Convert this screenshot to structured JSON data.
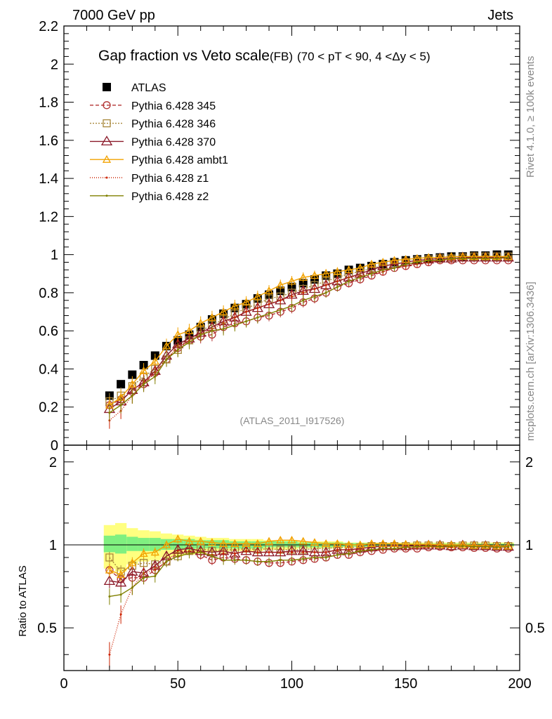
{
  "header": {
    "left": "7000 GeV pp",
    "right": "Jets"
  },
  "side_labels": {
    "rivet": "Rivet 4.1.0, ≥ 100k events",
    "mcplots": "mcplots.cern.ch [arXiv:1306.3436]"
  },
  "analysis_id": "(ATLAS_2011_I917526)",
  "colors": {
    "ATLAS": "#000000",
    "p345": "#b33333",
    "p346": "#a8873a",
    "p370": "#8b1a2a",
    "ambt1": "#f2a200",
    "z1": "#cc2200",
    "z2": "#808000",
    "band_green": "#80f080",
    "band_yellow": "#ffff80"
  },
  "chart_data": [
    {
      "type": "line",
      "title": "Gap fraction vs Veto scale",
      "title_suffix": "(FB)",
      "subtitle": "(70 < pT <  90, 4 <Δy < 5)",
      "xlabel": "",
      "ylabel": "",
      "xlim": [
        0,
        200
      ],
      "ylim": [
        0,
        2.2
      ],
      "yticks": [
        0,
        0.2,
        0.4,
        0.6,
        0.8,
        1,
        1.2,
        1.4,
        1.6,
        1.8,
        2,
        2.2
      ],
      "ytick_labels": [
        "0",
        "0.2",
        "0.4",
        "0.6",
        "0.8",
        "1",
        "1.2",
        "1.4",
        "1.6",
        "1.8",
        "2",
        "2.2"
      ],
      "x": [
        20,
        25,
        30,
        35,
        40,
        45,
        50,
        55,
        60,
        65,
        70,
        75,
        80,
        85,
        90,
        95,
        100,
        105,
        110,
        115,
        120,
        125,
        130,
        135,
        140,
        145,
        150,
        155,
        160,
        165,
        170,
        175,
        180,
        185,
        190,
        195
      ],
      "legend": [
        {
          "key": "ATLAS",
          "label": "ATLAS"
        },
        {
          "key": "p345",
          "label": "Pythia 6.428 345"
        },
        {
          "key": "p346",
          "label": "Pythia 6.428 346"
        },
        {
          "key": "p370",
          "label": "Pythia 6.428 370"
        },
        {
          "key": "ambt1",
          "label": "Pythia 6.428 ambt1"
        },
        {
          "key": "z1",
          "label": "Pythia 6.428 z1"
        },
        {
          "key": "z2",
          "label": "Pythia 6.428 z2"
        }
      ],
      "series": [
        {
          "key": "ATLAS",
          "name": "ATLAS",
          "values": [
            0.26,
            0.32,
            0.37,
            0.42,
            0.47,
            0.52,
            0.55,
            0.58,
            0.62,
            0.66,
            0.69,
            0.72,
            0.74,
            0.77,
            0.79,
            0.81,
            0.83,
            0.85,
            0.87,
            0.89,
            0.9,
            0.92,
            0.93,
            0.94,
            0.95,
            0.96,
            0.97,
            0.975,
            0.98,
            0.985,
            0.99,
            0.99,
            0.995,
            0.995,
            1.0,
            1.0
          ]
        },
        {
          "key": "p345",
          "name": "Pythia 6.428 345",
          "values": [
            0.21,
            0.24,
            0.28,
            0.32,
            0.38,
            0.45,
            0.51,
            0.55,
            0.57,
            0.58,
            0.62,
            0.64,
            0.65,
            0.67,
            0.68,
            0.7,
            0.72,
            0.75,
            0.77,
            0.8,
            0.83,
            0.85,
            0.87,
            0.89,
            0.91,
            0.93,
            0.94,
            0.95,
            0.96,
            0.97,
            0.97,
            0.97,
            0.97,
            0.97,
            0.97,
            0.97
          ]
        },
        {
          "key": "p346",
          "name": "Pythia 6.428 346",
          "values": [
            0.23,
            0.26,
            0.31,
            0.36,
            0.4,
            0.45,
            0.5,
            0.55,
            0.6,
            0.63,
            0.66,
            0.69,
            0.72,
            0.74,
            0.77,
            0.78,
            0.8,
            0.82,
            0.84,
            0.86,
            0.88,
            0.9,
            0.91,
            0.93,
            0.94,
            0.95,
            0.96,
            0.97,
            0.975,
            0.98,
            0.98,
            0.985,
            0.99,
            0.99,
            0.99,
            0.99
          ]
        },
        {
          "key": "p370",
          "name": "Pythia 6.428 370",
          "values": [
            0.19,
            0.23,
            0.29,
            0.33,
            0.39,
            0.47,
            0.53,
            0.56,
            0.59,
            0.62,
            0.65,
            0.67,
            0.7,
            0.72,
            0.74,
            0.76,
            0.79,
            0.81,
            0.82,
            0.84,
            0.86,
            0.88,
            0.9,
            0.92,
            0.94,
            0.95,
            0.96,
            0.97,
            0.975,
            0.98,
            0.98,
            0.985,
            0.985,
            0.985,
            0.985,
            0.985
          ]
        },
        {
          "key": "ambt1",
          "name": "Pythia 6.428 ambt1",
          "values": [
            0.21,
            0.25,
            0.32,
            0.39,
            0.44,
            0.52,
            0.58,
            0.6,
            0.64,
            0.67,
            0.7,
            0.73,
            0.75,
            0.78,
            0.81,
            0.84,
            0.86,
            0.88,
            0.89,
            0.9,
            0.91,
            0.92,
            0.93,
            0.95,
            0.96,
            0.97,
            0.975,
            0.98,
            0.985,
            0.985,
            0.99,
            0.99,
            0.99,
            0.99,
            0.99,
            0.99
          ]
        },
        {
          "key": "z1",
          "name": "Pythia 6.428 z1",
          "values": [
            0.13,
            0.18,
            0.26,
            0.33,
            0.38,
            0.45,
            0.52,
            0.55,
            0.58,
            0.61,
            0.64,
            0.67,
            0.7,
            0.72,
            0.74,
            0.76,
            0.78,
            0.8,
            0.82,
            0.84,
            0.86,
            0.88,
            0.89,
            0.9,
            0.91,
            0.93,
            0.94,
            0.95,
            0.96,
            0.97,
            0.97,
            0.98,
            0.98,
            0.98,
            0.98,
            0.98
          ]
        },
        {
          "key": "z2",
          "name": "Pythia 6.428 z2",
          "values": [
            0.17,
            0.21,
            0.26,
            0.32,
            0.36,
            0.45,
            0.5,
            0.54,
            0.58,
            0.6,
            0.61,
            0.63,
            0.65,
            0.67,
            0.69,
            0.71,
            0.73,
            0.76,
            0.78,
            0.8,
            0.83,
            0.86,
            0.88,
            0.9,
            0.92,
            0.93,
            0.95,
            0.96,
            0.97,
            0.97,
            0.98,
            0.98,
            0.98,
            0.98,
            0.98,
            0.985
          ]
        }
      ]
    },
    {
      "type": "line",
      "title": "",
      "xlabel": "",
      "ylabel": "Ratio to ATLAS",
      "xlim": [
        0,
        200
      ],
      "ylim": [
        0.35,
        2.3
      ],
      "yscale": "log",
      "xticks": [
        0,
        50,
        100,
        150,
        200
      ],
      "xtick_labels": [
        "0",
        "50",
        "100",
        "150",
        "200"
      ],
      "yticks": [
        0.5,
        1,
        2
      ],
      "ytick_labels": [
        "0.5",
        "1",
        "2"
      ],
      "x": [
        20,
        25,
        30,
        35,
        40,
        45,
        50,
        55,
        60,
        65,
        70,
        75,
        80,
        85,
        90,
        95,
        100,
        105,
        110,
        115,
        120,
        125,
        130,
        135,
        140,
        145,
        150,
        155,
        160,
        165,
        170,
        175,
        180,
        185,
        190,
        195
      ],
      "bands": {
        "yellow_upper": [
          1.18,
          1.2,
          1.15,
          1.13,
          1.12,
          1.1,
          1.09,
          1.08,
          1.07,
          1.06,
          1.06,
          1.05,
          1.05,
          1.05,
          1.04,
          1.04,
          1.04,
          1.03,
          1.03,
          1.03,
          1.03,
          1.02,
          1.02,
          1.02,
          1.02,
          1.02,
          1.02,
          1.02,
          1.02,
          1.02,
          1.02,
          1.02,
          1.02,
          1.02,
          1.02,
          1.02
        ],
        "yellow_lower": [
          0.82,
          0.8,
          0.85,
          0.87,
          0.88,
          0.9,
          0.91,
          0.92,
          0.93,
          0.94,
          0.94,
          0.95,
          0.95,
          0.95,
          0.96,
          0.96,
          0.96,
          0.97,
          0.97,
          0.97,
          0.97,
          0.98,
          0.98,
          0.98,
          0.98,
          0.98,
          0.98,
          0.98,
          0.98,
          0.98,
          0.98,
          0.98,
          0.98,
          0.98,
          0.98,
          0.98
        ],
        "green_upper": [
          1.08,
          1.09,
          1.07,
          1.06,
          1.06,
          1.05,
          1.05,
          1.05,
          1.04,
          1.04,
          1.04,
          1.03,
          1.03,
          1.03,
          1.03,
          1.03,
          1.03,
          1.02,
          1.02,
          1.02,
          1.02,
          1.015,
          1.015,
          1.015,
          1.015,
          1.01,
          1.01,
          1.01,
          1.01,
          1.01,
          1.01,
          1.01,
          1.01,
          1.01,
          1.01,
          1.01
        ],
        "green_lower": [
          0.94,
          0.93,
          0.95,
          0.95,
          0.95,
          0.96,
          0.96,
          0.96,
          0.97,
          0.97,
          0.97,
          0.97,
          0.97,
          0.97,
          0.98,
          0.98,
          0.98,
          0.98,
          0.98,
          0.98,
          0.98,
          0.985,
          0.985,
          0.985,
          0.985,
          0.99,
          0.99,
          0.99,
          0.99,
          0.99,
          0.99,
          0.99,
          0.99,
          0.99,
          0.99,
          0.99
        ]
      },
      "series": [
        {
          "key": "p345",
          "name": "Pythia 6.428 345",
          "values": [
            0.81,
            0.75,
            0.76,
            0.76,
            0.81,
            0.87,
            0.93,
            0.95,
            0.92,
            0.88,
            0.9,
            0.89,
            0.88,
            0.87,
            0.86,
            0.86,
            0.87,
            0.88,
            0.89,
            0.9,
            0.92,
            0.92,
            0.94,
            0.95,
            0.96,
            0.97,
            0.97,
            0.97,
            0.98,
            0.985,
            0.98,
            0.98,
            0.975,
            0.975,
            0.97,
            0.97
          ]
        },
        {
          "key": "p346",
          "name": "Pythia 6.428 346",
          "values": [
            0.9,
            0.8,
            0.84,
            0.86,
            0.85,
            0.87,
            0.91,
            0.95,
            0.97,
            0.95,
            0.96,
            0.96,
            0.97,
            0.96,
            0.97,
            0.96,
            0.96,
            0.96,
            0.97,
            0.97,
            0.98,
            0.98,
            0.98,
            0.99,
            0.99,
            0.99,
            0.99,
            0.995,
            0.995,
            0.995,
            0.99,
            0.995,
            0.995,
            0.995,
            0.99,
            0.99
          ]
        },
        {
          "key": "p370",
          "name": "Pythia 6.428 370",
          "values": [
            0.74,
            0.73,
            0.8,
            0.79,
            0.84,
            0.91,
            0.96,
            0.97,
            0.95,
            0.94,
            0.95,
            0.93,
            0.95,
            0.94,
            0.94,
            0.94,
            0.95,
            0.95,
            0.94,
            0.94,
            0.96,
            0.96,
            0.97,
            0.98,
            0.99,
            0.99,
            0.99,
            0.995,
            0.995,
            0.995,
            0.99,
            0.995,
            0.99,
            0.99,
            0.985,
            0.985
          ]
        },
        {
          "key": "ambt1",
          "name": "Pythia 6.428 ambt1",
          "values": [
            0.81,
            0.78,
            0.86,
            0.93,
            0.94,
            1.0,
            1.05,
            1.03,
            1.03,
            1.02,
            1.01,
            1.01,
            1.01,
            1.01,
            1.03,
            1.04,
            1.04,
            1.03,
            1.02,
            1.01,
            1.01,
            1.0,
            1.0,
            1.01,
            1.01,
            1.01,
            1.005,
            1.005,
            1.005,
            1.0,
            1.0,
            1.0,
            0.995,
            0.995,
            0.99,
            0.99
          ]
        },
        {
          "key": "z1",
          "name": "Pythia 6.428 z1",
          "values": [
            0.4,
            0.56,
            0.7,
            0.79,
            0.81,
            0.87,
            0.95,
            0.95,
            0.94,
            0.92,
            0.93,
            0.93,
            0.95,
            0.94,
            0.94,
            0.94,
            0.94,
            0.94,
            0.94,
            0.94,
            0.96,
            0.96,
            0.96,
            0.96,
            0.96,
            0.97,
            0.97,
            0.975,
            0.98,
            0.985,
            0.98,
            0.99,
            0.985,
            0.985,
            0.98,
            0.98
          ]
        },
        {
          "key": "z2",
          "name": "Pythia 6.428 z2",
          "values": [
            0.65,
            0.66,
            0.7,
            0.76,
            0.77,
            0.87,
            0.91,
            0.93,
            0.94,
            0.91,
            0.88,
            0.88,
            0.88,
            0.87,
            0.87,
            0.88,
            0.88,
            0.89,
            0.9,
            0.9,
            0.92,
            0.93,
            0.95,
            0.96,
            0.97,
            0.97,
            0.98,
            0.985,
            0.99,
            0.985,
            0.99,
            0.99,
            0.985,
            0.985,
            0.98,
            0.985
          ]
        }
      ]
    }
  ]
}
